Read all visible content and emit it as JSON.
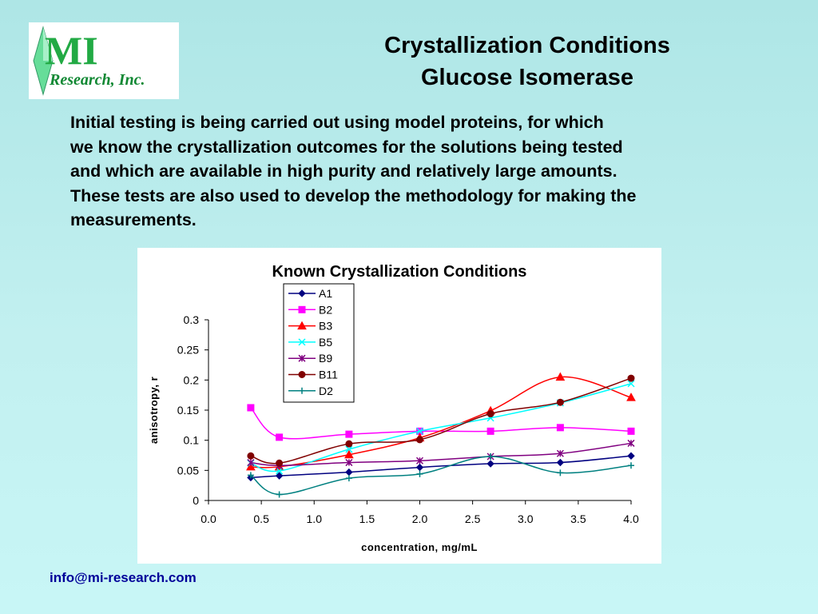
{
  "logo": {
    "text_main": "MI",
    "text_sub": "Research, Inc."
  },
  "slide": {
    "title_line1": "Crystallization Conditions",
    "title_line2": "Glucose Isomerase",
    "intro_lines": [
      "Initial testing is being carried out using model proteins, for which",
      "we know  the crystallization outcomes for the solutions being tested",
      "and which are available in high purity and relatively large amounts.",
      "These tests are also used to develop the methodology for making the",
      "measurements."
    ],
    "email": "info@mi-research.com"
  },
  "chart_data": {
    "type": "line",
    "title": "Known Crystallization Conditions",
    "xlabel": "concentration, mg/mL",
    "ylabel": "anisotropy, r",
    "xlim": [
      0.0,
      4.0
    ],
    "ylim": [
      0,
      0.3
    ],
    "xticks": [
      "0.0",
      "0.5",
      "1.0",
      "1.5",
      "2.0",
      "2.5",
      "3.0",
      "3.5",
      "4.0"
    ],
    "yticks": [
      "0",
      "0.05",
      "0.1",
      "0.15",
      "0.2",
      "0.25",
      "0.3"
    ],
    "grid": false,
    "legend_position": "top-center",
    "x": [
      0.4,
      0.67,
      1.33,
      2.0,
      2.67,
      3.33,
      4.0
    ],
    "series": [
      {
        "name": "A1",
        "color": "#000080",
        "marker": "diamond",
        "values": [
          0.038,
          0.041,
          0.047,
          0.055,
          0.061,
          0.063,
          0.074
        ]
      },
      {
        "name": "B2",
        "color": "#ff00ff",
        "marker": "square",
        "values": [
          0.154,
          0.105,
          0.11,
          0.115,
          0.115,
          0.121,
          0.115
        ]
      },
      {
        "name": "B3",
        "color": "#ff0000",
        "marker": "triangle",
        "values": [
          0.056,
          0.056,
          0.076,
          0.104,
          0.149,
          0.205,
          0.171
        ]
      },
      {
        "name": "B5",
        "color": "#00ffff",
        "marker": "x",
        "values": [
          0.062,
          0.049,
          0.085,
          0.115,
          0.137,
          0.162,
          0.194
        ]
      },
      {
        "name": "B9",
        "color": "#800080",
        "marker": "star",
        "values": [
          0.063,
          0.058,
          0.063,
          0.066,
          0.073,
          0.078,
          0.095
        ]
      },
      {
        "name": "B11",
        "color": "#800000",
        "marker": "circle",
        "values": [
          0.074,
          0.062,
          0.094,
          0.101,
          0.144,
          0.163,
          0.203
        ]
      },
      {
        "name": "D2",
        "color": "#008080",
        "marker": "plus",
        "values": [
          0.042,
          0.01,
          0.037,
          0.044,
          0.073,
          0.046,
          0.058
        ]
      }
    ]
  }
}
